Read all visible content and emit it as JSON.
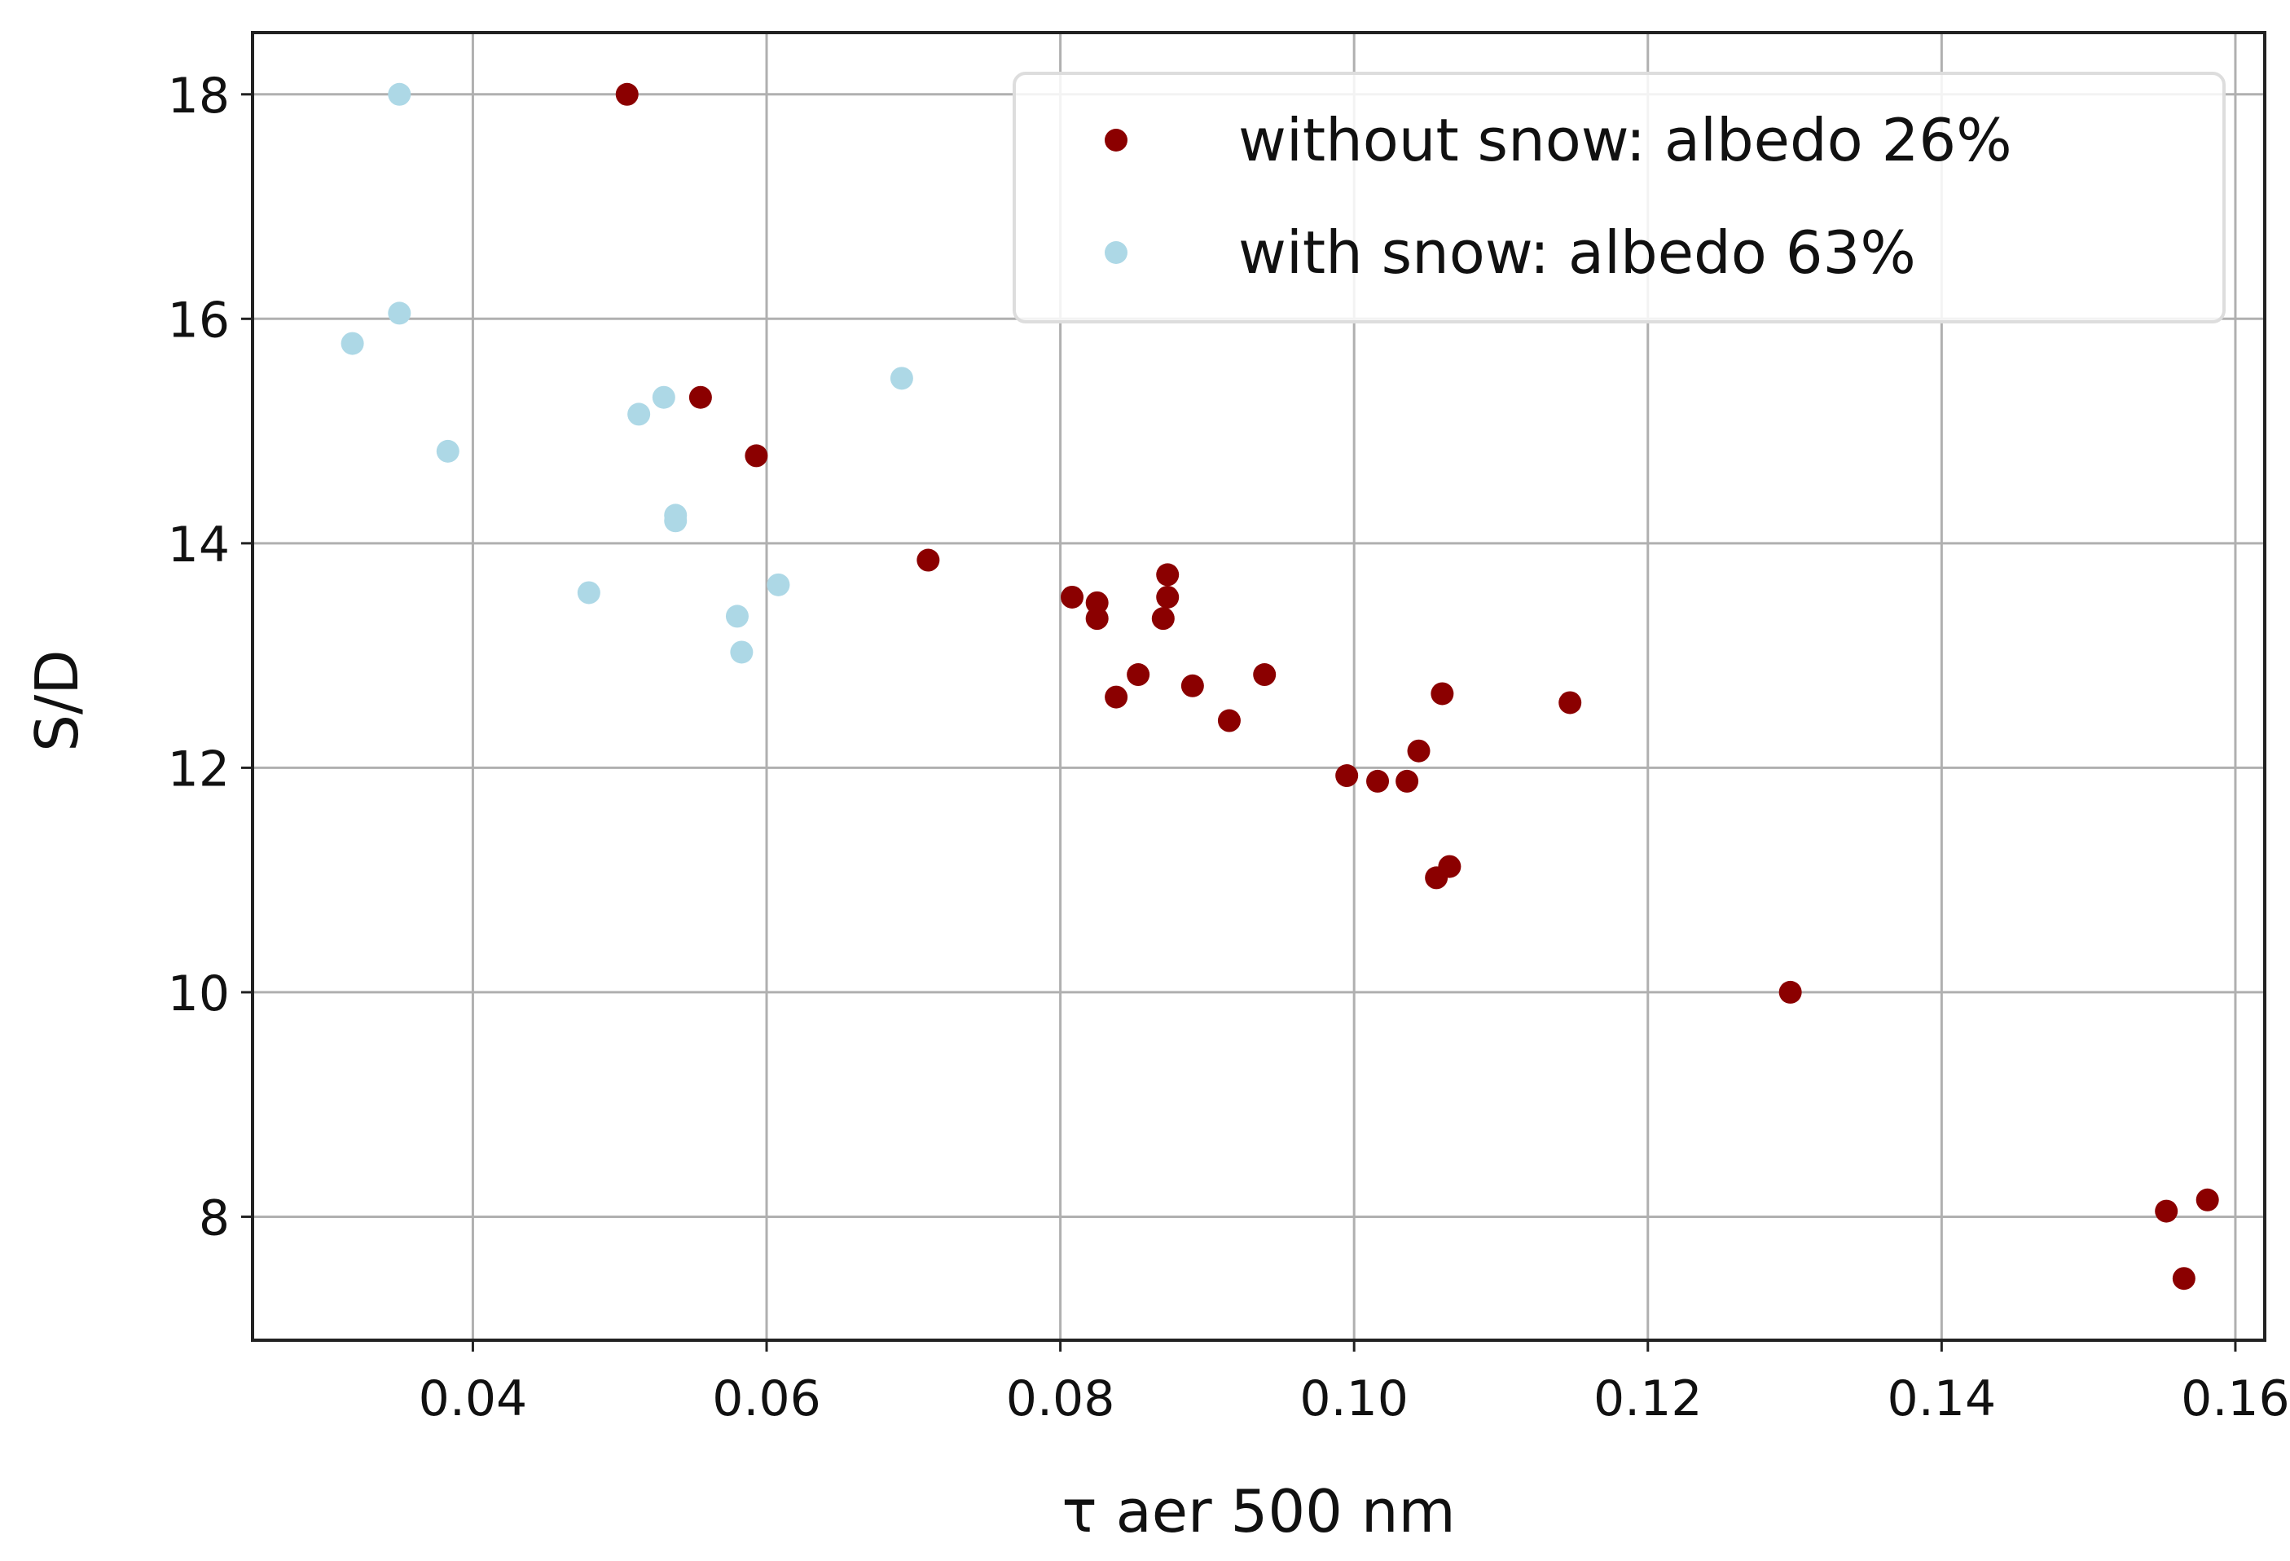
{
  "chart_data": {
    "type": "scatter",
    "title": "",
    "xlabel": "τ aer 500 nm",
    "ylabel": "S/D",
    "xlim": [
      0.025,
      0.162
    ],
    "ylim": [
      6.9,
      18.55
    ],
    "xticks": [
      0.04,
      0.06,
      0.08,
      0.1,
      0.12,
      0.14,
      0.16
    ],
    "xtick_labels": [
      "0.04",
      "0.06",
      "0.08",
      "0.10",
      "0.12",
      "0.14",
      "0.16"
    ],
    "yticks": [
      8,
      10,
      12,
      14,
      16,
      18
    ],
    "ytick_labels": [
      "8",
      "10",
      "12",
      "14",
      "16",
      "18"
    ],
    "grid": true,
    "legend_position": "top-right",
    "series": [
      {
        "name": "without snow: albedo 26%",
        "color": "#8b0000",
        "x": [
          0.0505,
          0.0555,
          0.0593,
          0.071,
          0.0808,
          0.0825,
          0.0825,
          0.087,
          0.0873,
          0.0873,
          0.0853,
          0.0838,
          0.089,
          0.0939,
          0.0915,
          0.0995,
          0.1016,
          0.1036,
          0.1044,
          0.106,
          0.1056,
          0.1065,
          0.1147,
          0.1297,
          0.1553,
          0.1565,
          0.1581
        ],
        "y": [
          18.0,
          15.3,
          14.78,
          13.85,
          13.52,
          13.47,
          13.33,
          13.33,
          13.52,
          13.72,
          12.83,
          12.63,
          12.73,
          12.83,
          12.42,
          11.93,
          11.88,
          11.88,
          12.15,
          12.66,
          11.02,
          11.12,
          12.58,
          10.0,
          8.05,
          7.45,
          8.15
        ]
      },
      {
        "name": "with snow: albedo 63%",
        "color": "#add8e6",
        "x": [
          0.035,
          0.035,
          0.0318,
          0.0383,
          0.0513,
          0.053,
          0.0538,
          0.0538,
          0.0479,
          0.058,
          0.0583,
          0.0608,
          0.0692
        ],
        "y": [
          18.0,
          16.05,
          15.78,
          14.82,
          15.15,
          15.3,
          14.25,
          14.2,
          13.56,
          13.35,
          13.03,
          13.63,
          15.47
        ]
      }
    ]
  }
}
